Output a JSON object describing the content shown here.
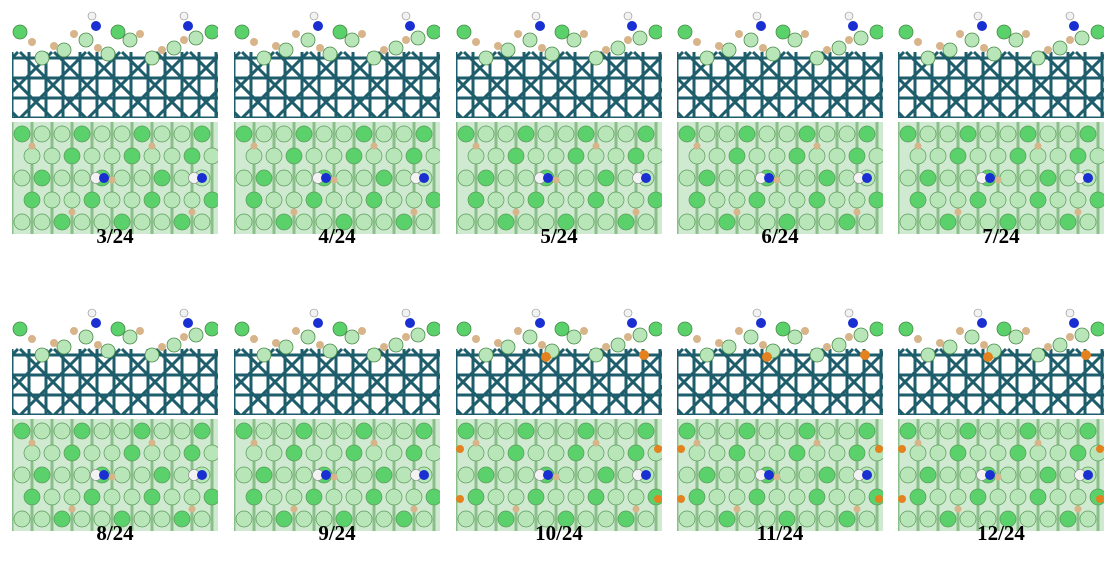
{
  "rows": [
    {
      "panels": [
        {
          "label": "3/24",
          "extra_atoms": "none"
        },
        {
          "label": "4/24",
          "extra_atoms": "none"
        },
        {
          "label": "5/24",
          "extra_atoms": "none"
        },
        {
          "label": "6/24",
          "extra_atoms": "none"
        },
        {
          "label": "7/24",
          "extra_atoms": "none"
        }
      ]
    },
    {
      "panels": [
        {
          "label": "8/24",
          "extra_atoms": "none"
        },
        {
          "label": "9/24",
          "extra_atoms": "none"
        },
        {
          "label": "10/24",
          "extra_atoms": "orange"
        },
        {
          "label": "11/24",
          "extra_atoms": "orange"
        },
        {
          "label": "12/24",
          "extra_atoms": "orange"
        }
      ]
    }
  ],
  "colors": {
    "substrate": "#1e5d6b",
    "light_green_atom": "#b8e6b8",
    "green_atom": "#5ad16a",
    "tan_atom": "#d8b48a",
    "blue_atom": "#1a2fd1",
    "white_atom": "#f2f2f2",
    "orange_atom": "#e3821f",
    "top_view_bg": "#cfead0"
  }
}
